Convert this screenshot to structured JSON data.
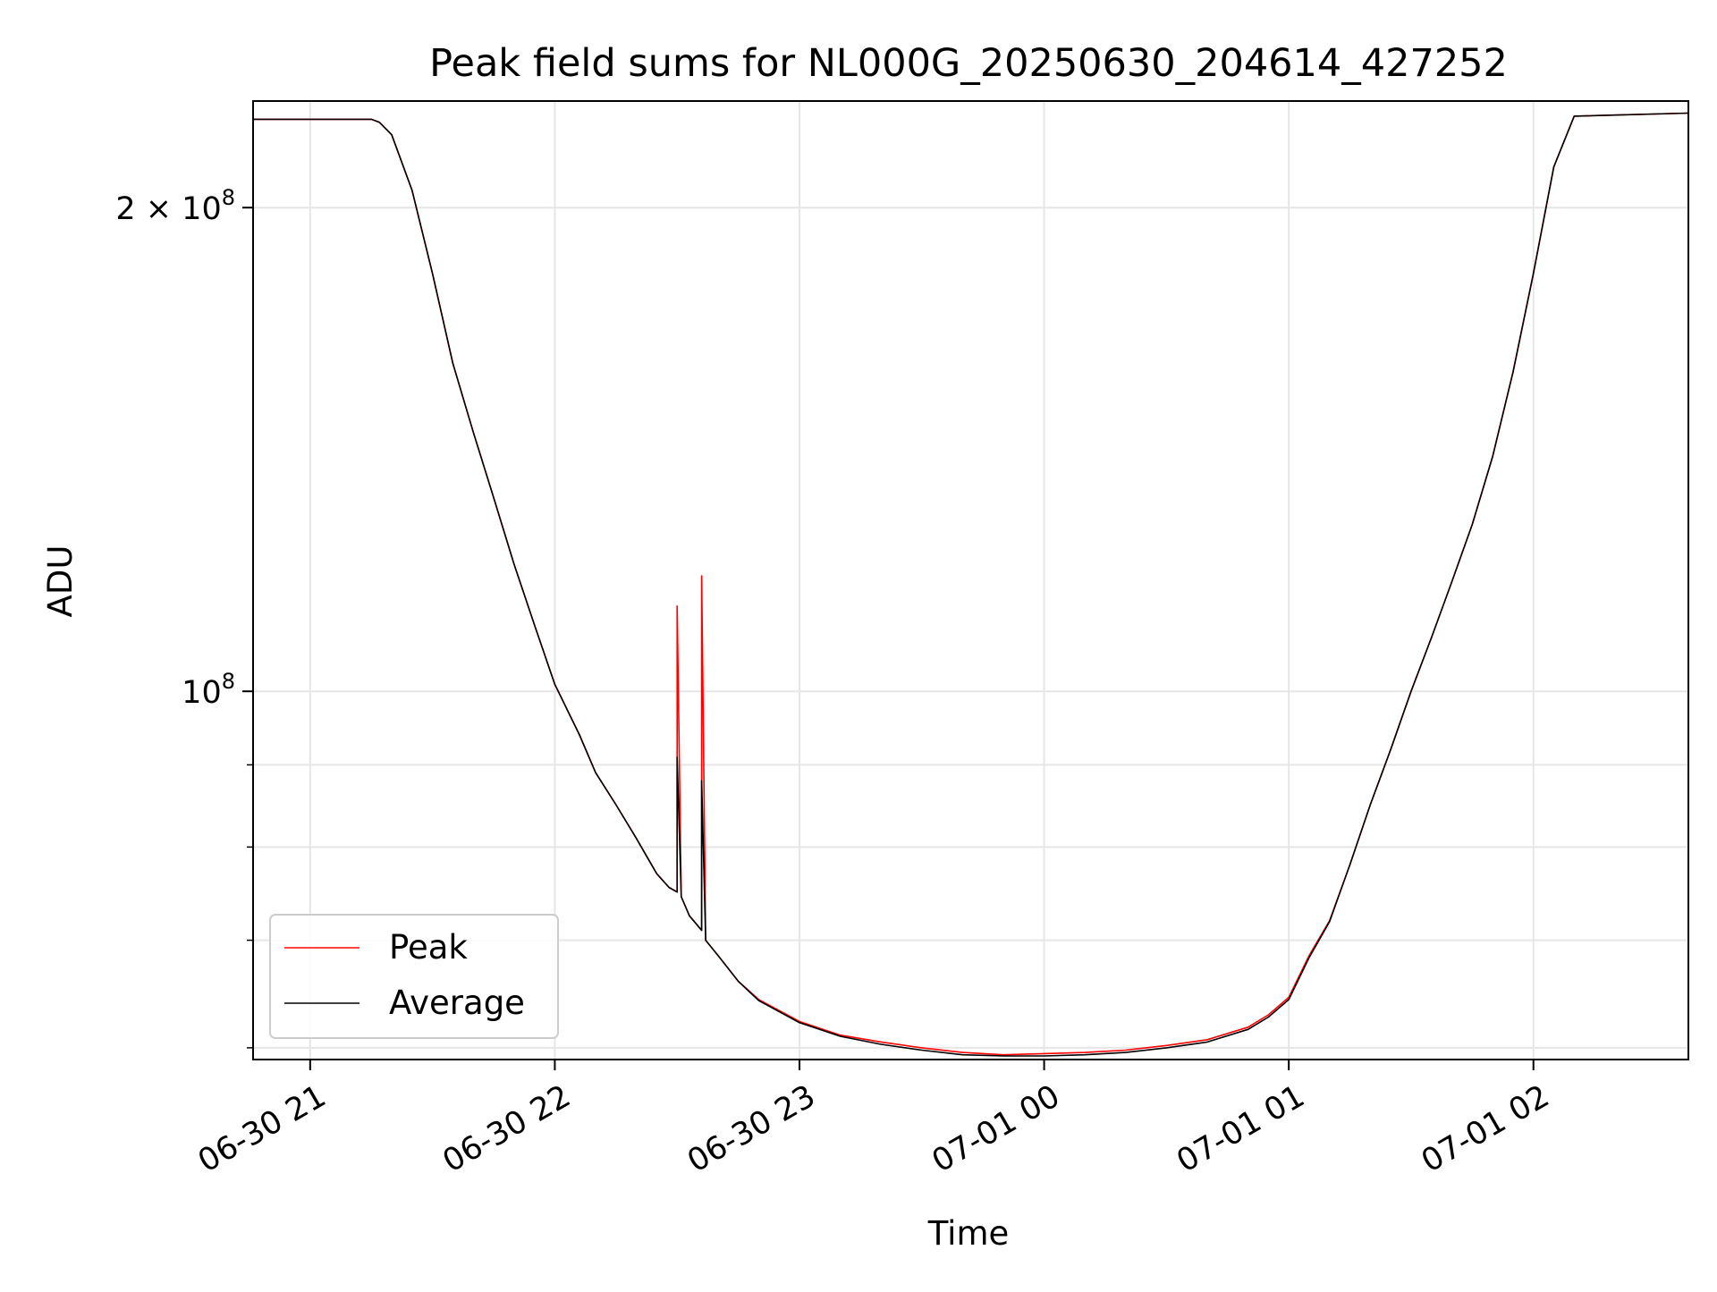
{
  "chart_data": {
    "type": "line",
    "title": "Peak field sums for NL000G_20250630_204614_427252",
    "xlabel": "Time",
    "ylabel": "ADU",
    "y_scale": "log",
    "ylim": [
      59000000,
      233000000
    ],
    "xlim": [
      "2025-06-30 20:46",
      "2025-07-01 02:38"
    ],
    "grid": true,
    "legend_position": "lower-left",
    "x_ticks": [
      {
        "t": "2025-06-30 21:00",
        "label": "06-30 21"
      },
      {
        "t": "2025-06-30 22:00",
        "label": "06-30 22"
      },
      {
        "t": "2025-06-30 23:00",
        "label": "06-30 23"
      },
      {
        "t": "2025-07-01 00:00",
        "label": "07-01 00"
      },
      {
        "t": "2025-07-01 01:00",
        "label": "07-01 01"
      },
      {
        "t": "2025-07-01 02:00",
        "label": "07-01 02"
      }
    ],
    "y_major_ticks": [
      {
        "value": 100000000,
        "base": "10",
        "exp": "8",
        "coef": ""
      },
      {
        "value": 200000000,
        "base": "10",
        "exp": "8",
        "coef": "2 × "
      }
    ],
    "y_minor_ticks": [
      60000000,
      70000000,
      80000000,
      90000000
    ],
    "series": [
      {
        "name": "Peak",
        "color": "#ff0000",
        "x": [
          "2025-06-30 20:46",
          "2025-06-30 21:15",
          "2025-06-30 21:17",
          "2025-06-30 21:20",
          "2025-06-30 21:25",
          "2025-06-30 21:30",
          "2025-06-30 21:35",
          "2025-06-30 21:40",
          "2025-06-30 21:45",
          "2025-06-30 21:50",
          "2025-06-30 21:55",
          "2025-06-30 22:00",
          "2025-06-30 22:06",
          "2025-06-30 22:10",
          "2025-06-30 22:15",
          "2025-06-30 22:20",
          "2025-06-30 22:25",
          "2025-06-30 22:28",
          "2025-06-30 22:30",
          "2025-06-30 22:30",
          "2025-06-30 22:31",
          "2025-06-30 22:33",
          "2025-06-30 22:36",
          "2025-06-30 22:36",
          "2025-06-30 22:37",
          "2025-06-30 22:40",
          "2025-06-30 22:45",
          "2025-06-30 22:50",
          "2025-06-30 23:00",
          "2025-06-30 23:10",
          "2025-06-30 23:20",
          "2025-06-30 23:30",
          "2025-06-30 23:40",
          "2025-06-30 23:50",
          "2025-07-01 00:00",
          "2025-07-01 00:10",
          "2025-07-01 00:20",
          "2025-07-01 00:30",
          "2025-07-01 00:40",
          "2025-07-01 00:50",
          "2025-07-01 00:55",
          "2025-07-01 01:00",
          "2025-07-01 01:05",
          "2025-07-01 01:10",
          "2025-07-01 01:15",
          "2025-07-01 01:20",
          "2025-07-01 01:25",
          "2025-07-01 01:30",
          "2025-07-01 01:35",
          "2025-07-01 01:40",
          "2025-07-01 01:45",
          "2025-07-01 01:50",
          "2025-07-01 01:55",
          "2025-07-01 02:00",
          "2025-07-01 02:05",
          "2025-07-01 02:10",
          "2025-07-01 02:38"
        ],
        "y": [
          227000000,
          227000000,
          226000000,
          222000000,
          205000000,
          182000000,
          160000000,
          145000000,
          132000000,
          120000000,
          110000000,
          101000000,
          94000000,
          89000000,
          85000000,
          81000000,
          77000000,
          75500000,
          75000000,
          113000000,
          74500000,
          72500000,
          71000000,
          118000000,
          70000000,
          68500000,
          66000000,
          64300000,
          62300000,
          61100000,
          60500000,
          60000000,
          59600000,
          59400000,
          59500000,
          59600000,
          59800000,
          60200000,
          60700000,
          61800000,
          62900000,
          64500000,
          68500000,
          72000000,
          78000000,
          85000000,
          92000000,
          100000000,
          108000000,
          117000000,
          127000000,
          140000000,
          158000000,
          182000000,
          212000000,
          228000000,
          229000000
        ]
      },
      {
        "name": "Average",
        "color": "#000000",
        "x": [
          "2025-06-30 20:46",
          "2025-06-30 21:15",
          "2025-06-30 21:17",
          "2025-06-30 21:20",
          "2025-06-30 21:25",
          "2025-06-30 21:30",
          "2025-06-30 21:35",
          "2025-06-30 21:40",
          "2025-06-30 21:45",
          "2025-06-30 21:50",
          "2025-06-30 21:55",
          "2025-06-30 22:00",
          "2025-06-30 22:06",
          "2025-06-30 22:10",
          "2025-06-30 22:15",
          "2025-06-30 22:20",
          "2025-06-30 22:25",
          "2025-06-30 22:28",
          "2025-06-30 22:30",
          "2025-06-30 22:30",
          "2025-06-30 22:31",
          "2025-06-30 22:33",
          "2025-06-30 22:36",
          "2025-06-30 22:36",
          "2025-06-30 22:37",
          "2025-06-30 22:40",
          "2025-06-30 22:45",
          "2025-06-30 22:50",
          "2025-06-30 23:00",
          "2025-06-30 23:10",
          "2025-06-30 23:20",
          "2025-06-30 23:30",
          "2025-06-30 23:40",
          "2025-06-30 23:50",
          "2025-07-01 00:00",
          "2025-07-01 00:10",
          "2025-07-01 00:20",
          "2025-07-01 00:30",
          "2025-07-01 00:40",
          "2025-07-01 00:50",
          "2025-07-01 00:55",
          "2025-07-01 01:00",
          "2025-07-01 01:05",
          "2025-07-01 01:10",
          "2025-07-01 01:15",
          "2025-07-01 01:20",
          "2025-07-01 01:25",
          "2025-07-01 01:30",
          "2025-07-01 01:35",
          "2025-07-01 01:40",
          "2025-07-01 01:45",
          "2025-07-01 01:50",
          "2025-07-01 01:55",
          "2025-07-01 02:00",
          "2025-07-01 02:05",
          "2025-07-01 02:10",
          "2025-07-01 02:38"
        ],
        "y": [
          227000000,
          227000000,
          226000000,
          222000000,
          205000000,
          182000000,
          160000000,
          145000000,
          132000000,
          120000000,
          110000000,
          101000000,
          94000000,
          89000000,
          85000000,
          81000000,
          77000000,
          75500000,
          75000000,
          91000000,
          74500000,
          72500000,
          71000000,
          88000000,
          70000000,
          68500000,
          66000000,
          64200000,
          62200000,
          61000000,
          60300000,
          59800000,
          59400000,
          59300000,
          59300000,
          59400000,
          59600000,
          60000000,
          60500000,
          61600000,
          62700000,
          64300000,
          68300000,
          71900000,
          78000000,
          85000000,
          92000000,
          100000000,
          108000000,
          117000000,
          127000000,
          140000000,
          158000000,
          182000000,
          212000000,
          228000000,
          229000000
        ]
      }
    ]
  }
}
